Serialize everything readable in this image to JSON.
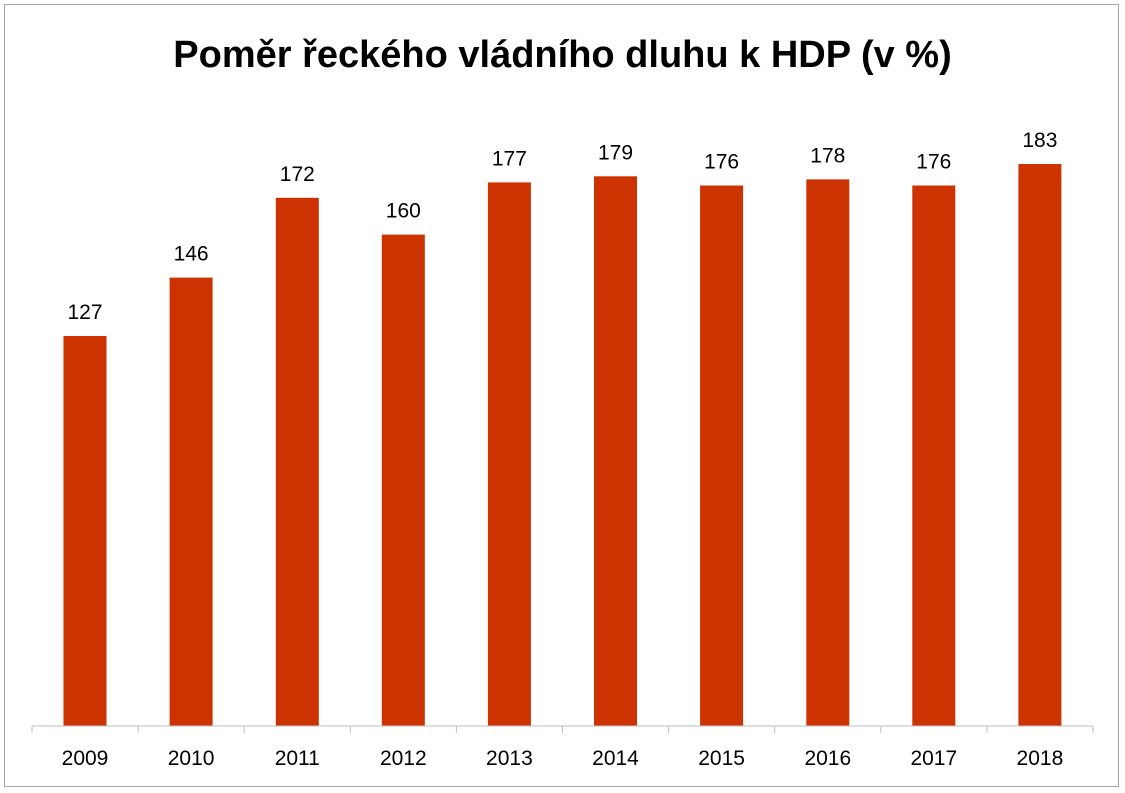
{
  "chart_data": {
    "type": "bar",
    "title": "Poměr řeckého vládního dluhu k HDP (v %)",
    "xlabel": "",
    "ylabel": "",
    "categories": [
      "2009",
      "2010",
      "2011",
      "2012",
      "2013",
      "2014",
      "2015",
      "2016",
      "2017",
      "2018"
    ],
    "values": [
      127,
      146,
      172,
      160,
      177,
      179,
      176,
      178,
      176,
      183
    ],
    "ylim": [
      0,
      183
    ],
    "grid": false,
    "legend": "none",
    "bar_color": "#cc3300",
    "show_value_labels": true
  }
}
